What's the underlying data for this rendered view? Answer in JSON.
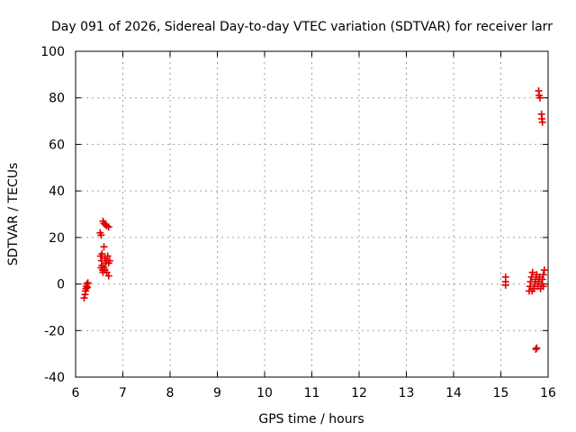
{
  "chart_data": {
    "type": "scatter",
    "title": "Day 091 of 2026, Sidereal Day-to-day VTEC variation (SDTVAR) for receiver larr",
    "xlabel": "GPS time / hours",
    "ylabel": "SDTVAR / TECUs",
    "xlim": [
      6,
      16
    ],
    "ylim": [
      -40,
      100
    ],
    "xticks": [
      "6",
      "7",
      "8",
      "9",
      "10",
      "11",
      "12",
      "13",
      "14",
      "15",
      "16"
    ],
    "yticks": [
      "-40",
      "-20",
      "0",
      "20",
      "40",
      "60",
      "80",
      "100"
    ],
    "grid": true,
    "marker": "plus",
    "color": "#e00000",
    "series": [
      {
        "name": "SDTVAR",
        "points": [
          [
            6.18,
            -6
          ],
          [
            6.2,
            -4.5
          ],
          [
            6.21,
            -3
          ],
          [
            6.22,
            -2
          ],
          [
            6.23,
            -1
          ],
          [
            6.24,
            0
          ],
          [
            6.25,
            -1.5
          ],
          [
            6.26,
            0.5
          ],
          [
            6.52,
            22
          ],
          [
            6.54,
            21
          ],
          [
            6.53,
            12
          ],
          [
            6.55,
            10
          ],
          [
            6.56,
            8
          ],
          [
            6.54,
            7
          ],
          [
            6.57,
            6
          ],
          [
            6.58,
            5
          ],
          [
            6.6,
            7
          ],
          [
            6.56,
            13
          ],
          [
            6.58,
            27
          ],
          [
            6.6,
            26
          ],
          [
            6.63,
            25.5
          ],
          [
            6.66,
            25
          ],
          [
            6.7,
            24.5
          ],
          [
            6.6,
            16
          ],
          [
            6.62,
            11
          ],
          [
            6.64,
            9
          ],
          [
            6.66,
            10
          ],
          [
            6.68,
            12
          ],
          [
            6.7,
            9
          ],
          [
            6.72,
            10
          ],
          [
            6.66,
            5
          ],
          [
            6.7,
            3.5
          ],
          [
            6.62,
            6
          ],
          [
            15.1,
            3
          ],
          [
            15.1,
            1
          ],
          [
            15.1,
            -0.5
          ],
          [
            15.6,
            -3
          ],
          [
            15.62,
            -1
          ],
          [
            15.63,
            1
          ],
          [
            15.65,
            3
          ],
          [
            15.67,
            5
          ],
          [
            15.7,
            -2
          ],
          [
            15.72,
            0
          ],
          [
            15.74,
            2
          ],
          [
            15.76,
            4
          ],
          [
            15.78,
            -1
          ],
          [
            15.8,
            1
          ],
          [
            15.82,
            3
          ],
          [
            15.84,
            -2
          ],
          [
            15.86,
            0
          ],
          [
            15.88,
            2
          ],
          [
            15.9,
            4
          ],
          [
            15.92,
            6
          ],
          [
            15.9,
            -1
          ],
          [
            15.66,
            -3
          ],
          [
            15.74,
            -28
          ],
          [
            15.76,
            -27.5
          ],
          [
            15.8,
            83
          ],
          [
            15.81,
            81
          ],
          [
            15.83,
            80
          ],
          [
            15.86,
            73
          ],
          [
            15.87,
            71
          ],
          [
            15.88,
            69.5
          ]
        ]
      }
    ]
  }
}
